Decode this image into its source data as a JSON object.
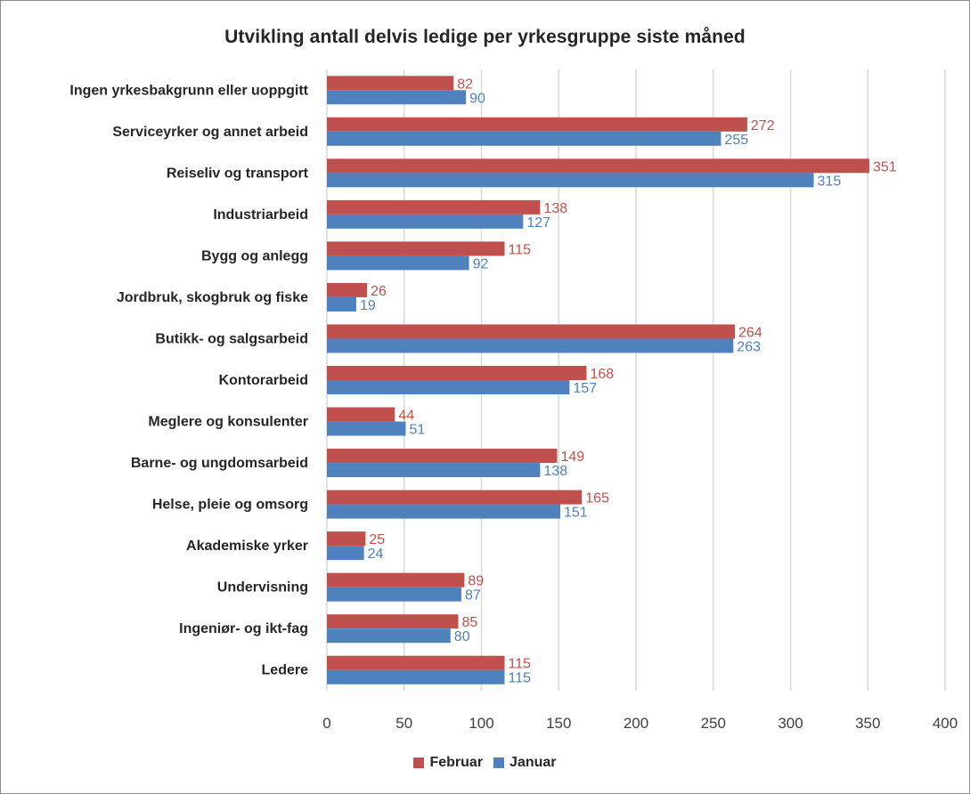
{
  "chart_data": {
    "type": "bar",
    "orientation": "horizontal",
    "title": "Utvikling antall delvis ledige per yrkesgruppe siste måned",
    "categories": [
      "Ingen yrkesbakgrunn eller uoppgitt",
      "Serviceyrker og annet arbeid",
      "Reiseliv og transport",
      "Industriarbeid",
      "Bygg og anlegg",
      "Jordbruk, skogbruk og fiske",
      "Butikk- og salgsarbeid",
      "Kontorarbeid",
      "Meglere og konsulenter",
      "Barne- og ungdomsarbeid",
      "Helse, pleie og omsorg",
      "Akademiske yrker",
      "Undervisning",
      "Ingeniør- og ikt-fag",
      "Ledere"
    ],
    "series": [
      {
        "name": "Februar",
        "color": "#c0504d",
        "values": [
          82,
          272,
          351,
          138,
          115,
          26,
          264,
          168,
          44,
          149,
          165,
          25,
          89,
          85,
          115
        ]
      },
      {
        "name": "Januar",
        "color": "#4f81bd",
        "values": [
          90,
          255,
          315,
          127,
          92,
          19,
          263,
          157,
          51,
          138,
          151,
          24,
          87,
          80,
          115
        ]
      }
    ],
    "xlim": [
      0,
      400
    ],
    "xticks": [
      "0",
      "50",
      "100",
      "150",
      "200",
      "250",
      "300",
      "350",
      "400"
    ],
    "grid": true,
    "legend_position": "bottom",
    "xlabel": "",
    "ylabel": ""
  }
}
